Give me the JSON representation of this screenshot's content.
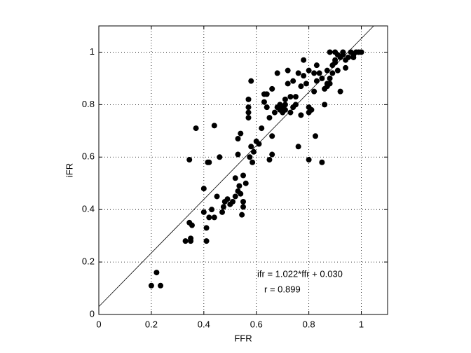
{
  "chart_data": {
    "type": "scatter",
    "xlabel": "FFR",
    "ylabel": "iFR",
    "xlim": [
      0,
      1.1
    ],
    "ylim": [
      0,
      1.1
    ],
    "xticks": [
      0,
      0.2,
      0.4,
      0.6,
      0.8,
      1
    ],
    "yticks": [
      0,
      0.2,
      0.4,
      0.6,
      0.8,
      1
    ],
    "grid": true,
    "color": "#000000",
    "fit_line": {
      "slope": 1.022,
      "intercept": 0.03
    },
    "annotations": [
      "ifr = 1.022*ffr + 0.030",
      "r = 0.899"
    ],
    "x": [
      0.2,
      0.22,
      0.235,
      0.33,
      0.35,
      0.35,
      0.345,
      0.355,
      0.345,
      0.37,
      0.4,
      0.4,
      0.41,
      0.41,
      0.415,
      0.42,
      0.42,
      0.43,
      0.44,
      0.44,
      0.45,
      0.46,
      0.47,
      0.475,
      0.48,
      0.49,
      0.5,
      0.51,
      0.52,
      0.53,
      0.535,
      0.54,
      0.545,
      0.55,
      0.55,
      0.55,
      0.53,
      0.53,
      0.54,
      0.57,
      0.57,
      0.57,
      0.57,
      0.575,
      0.58,
      0.58,
      0.585,
      0.59,
      0.6,
      0.61,
      0.62,
      0.63,
      0.64,
      0.64,
      0.65,
      0.65,
      0.66,
      0.66,
      0.67,
      0.68,
      0.68,
      0.69,
      0.69,
      0.7,
      0.7,
      0.71,
      0.71,
      0.72,
      0.72,
      0.73,
      0.73,
      0.74,
      0.75,
      0.76,
      0.77,
      0.77,
      0.78,
      0.78,
      0.79,
      0.8,
      0.8,
      0.8,
      0.81,
      0.82,
      0.82,
      0.825,
      0.83,
      0.83,
      0.84,
      0.85,
      0.85,
      0.86,
      0.86,
      0.87,
      0.87,
      0.87,
      0.88,
      0.88,
      0.89,
      0.89,
      0.9,
      0.9,
      0.9,
      0.91,
      0.91,
      0.92,
      0.92,
      0.93,
      0.93,
      0.94,
      0.94,
      0.95,
      0.96,
      0.97,
      0.98,
      0.99,
      1.0,
      0.74,
      0.76,
      0.66,
      0.56,
      0.52,
      0.63,
      0.8,
      0.75,
      0.71,
      0.88,
      0.97
    ],
    "values": [
      0.11,
      0.16,
      0.11,
      0.28,
      0.28,
      0.29,
      0.35,
      0.34,
      0.59,
      0.71,
      0.48,
      0.39,
      0.33,
      0.28,
      0.58,
      0.58,
      0.37,
      0.4,
      0.37,
      0.72,
      0.45,
      0.6,
      0.39,
      0.41,
      0.43,
      0.44,
      0.42,
      0.43,
      0.45,
      0.47,
      0.49,
      0.46,
      0.38,
      0.53,
      0.43,
      0.41,
      0.61,
      0.67,
      0.69,
      0.82,
      0.79,
      0.77,
      0.75,
      0.6,
      0.89,
      0.64,
      0.58,
      0.62,
      0.66,
      0.65,
      0.71,
      0.84,
      0.84,
      0.79,
      0.75,
      0.59,
      0.68,
      0.61,
      0.77,
      0.79,
      0.92,
      0.8,
      0.78,
      0.79,
      0.77,
      0.8,
      0.78,
      0.93,
      0.88,
      0.83,
      0.77,
      0.79,
      0.8,
      0.64,
      0.76,
      0.87,
      0.91,
      0.97,
      0.88,
      0.93,
      0.59,
      0.79,
      0.78,
      0.92,
      0.85,
      0.68,
      0.89,
      0.95,
      0.92,
      0.58,
      0.9,
      0.86,
      0.8,
      0.87,
      0.93,
      0.88,
      0.88,
      1.0,
      0.95,
      0.92,
      1.0,
      0.97,
      0.96,
      0.99,
      0.93,
      0.98,
      0.85,
      0.99,
      1.0,
      0.94,
      0.97,
      0.98,
      1.0,
      0.99,
      1.0,
      1.0,
      1.0,
      0.89,
      0.92,
      0.86,
      0.5,
      0.52,
      0.81,
      0.77,
      0.83,
      0.82,
      0.9,
      0.98
    ]
  }
}
